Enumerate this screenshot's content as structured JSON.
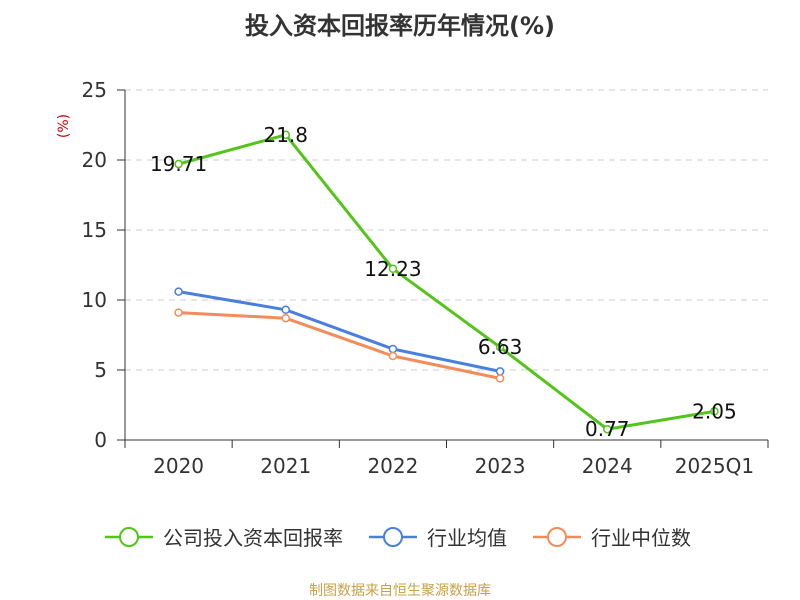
{
  "chart_data": {
    "type": "line",
    "title": "投入资本回报率历年情况(%)",
    "ylabel": "(%)",
    "xlabel": "",
    "categories": [
      "2020",
      "2021",
      "2022",
      "2023",
      "2024",
      "2025Q1"
    ],
    "ylim": [
      0,
      25
    ],
    "yticks": [
      0,
      5,
      10,
      15,
      20,
      25
    ],
    "grid": true,
    "legend_position": "bottom",
    "series": [
      {
        "name": "公司投入资本回报率",
        "color": "#52c41a",
        "values": [
          19.71,
          21.8,
          12.23,
          6.63,
          0.77,
          2.05
        ],
        "labels": [
          "19.71",
          "21.8",
          "12.23",
          "6.63",
          "0.77",
          "2.05"
        ]
      },
      {
        "name": "行业均值",
        "color": "#4a7fdb",
        "values": [
          10.6,
          9.3,
          6.5,
          4.9,
          null,
          null
        ]
      },
      {
        "name": "行业中位数",
        "color": "#f28c5a",
        "values": [
          9.1,
          8.7,
          6.0,
          4.4,
          null,
          null
        ]
      }
    ]
  },
  "source_text": "制图数据来自恒生聚源数据库"
}
